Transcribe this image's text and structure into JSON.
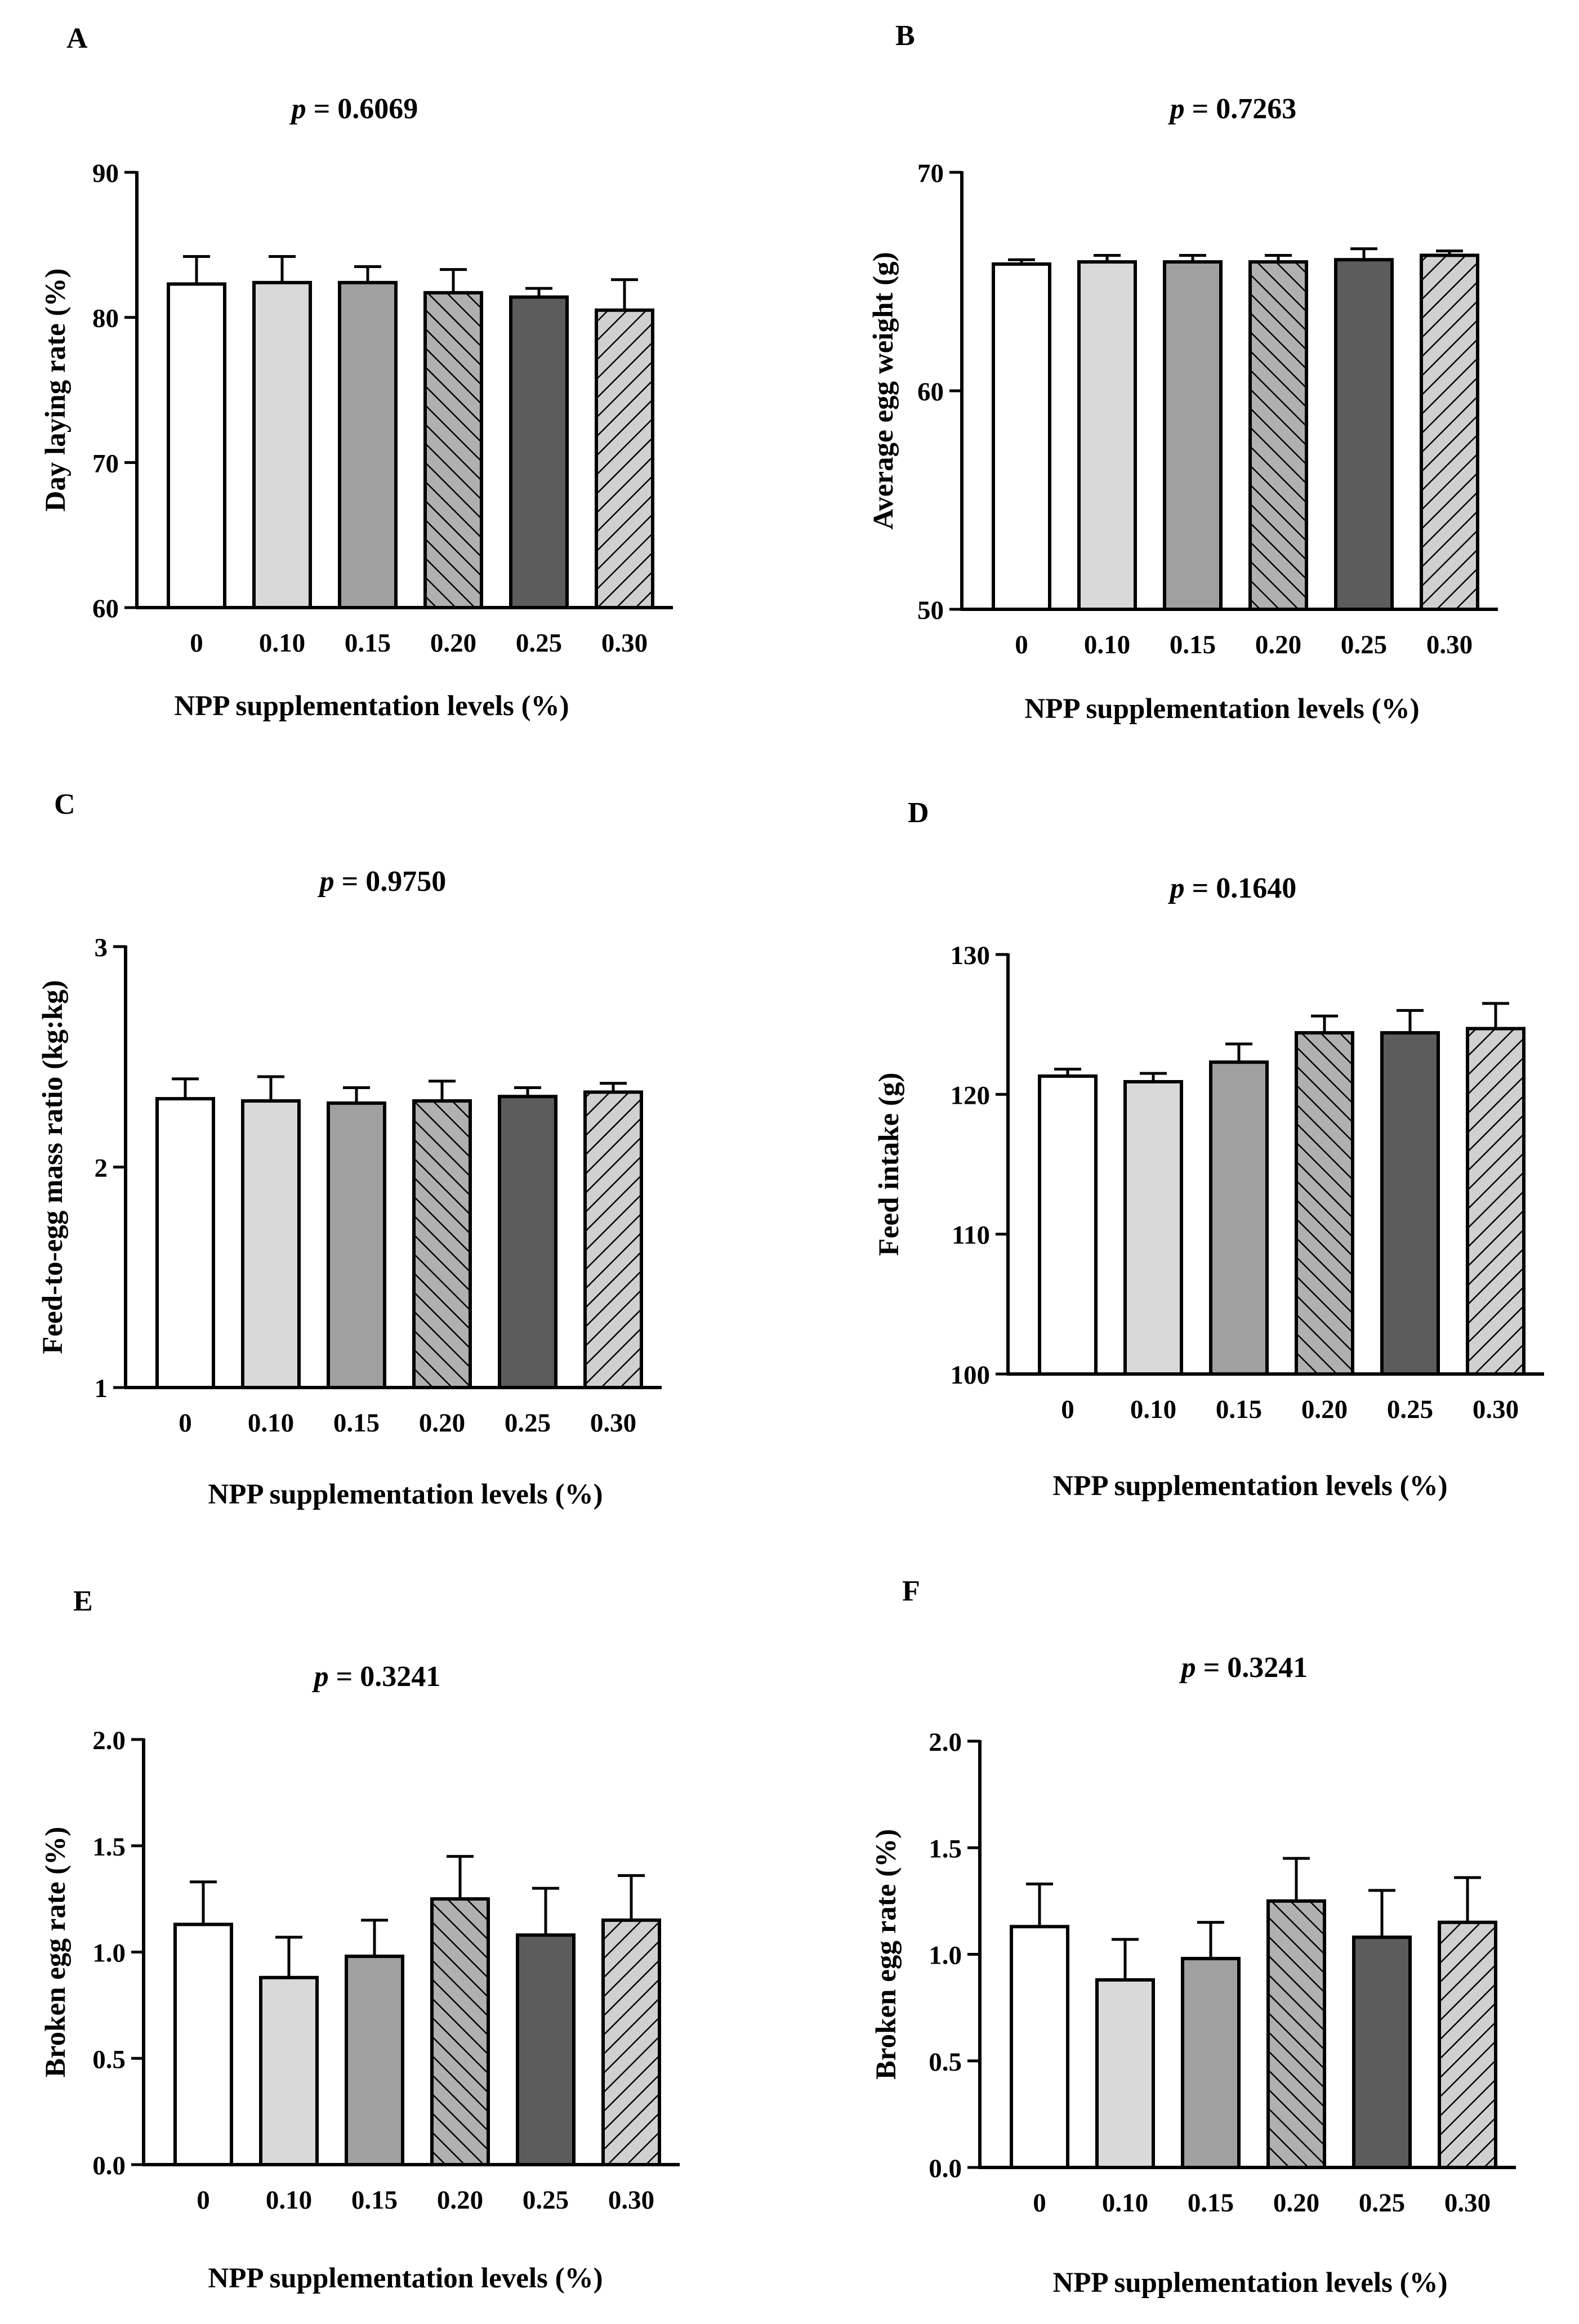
{
  "figure": {
    "colors": {
      "bar_0": "#ffffff",
      "bar_010": "#d9d9d9",
      "bar_015": "#a0a0a0",
      "bar_025": "#5c5c5c",
      "hatch_020_bg": "#b0b0b0",
      "hatch_030_bg": "#d0d0d0",
      "axis": "#000000"
    },
    "panels": [
      {
        "letter": "A",
        "p_label": "p",
        "p_text": " = 0.6069",
        "chart_data": {
          "type": "bar",
          "categories": [
            "0",
            "0.10",
            "0.15",
            "0.20",
            "0.25",
            "0.30"
          ],
          "values": [
            82.3,
            82.4,
            82.4,
            81.7,
            81.4,
            80.5
          ],
          "errors": [
            1.9,
            1.8,
            1.1,
            1.6,
            0.6,
            2.1
          ],
          "xlabel": "NPP supplementation levels  (%)",
          "ylabel": "Day laying rate (%)",
          "ylim": [
            60,
            90
          ],
          "yticks": [
            "60",
            "70",
            "80",
            "90"
          ],
          "ytick_values": [
            60,
            70,
            80,
            90
          ]
        }
      },
      {
        "letter": "B",
        "p_label": "p",
        "p_text": " =  0.7263",
        "chart_data": {
          "type": "bar",
          "categories": [
            "0",
            "0.10",
            "0.15",
            "0.20",
            "0.25",
            "0.30"
          ],
          "values": [
            65.8,
            65.9,
            65.9,
            65.9,
            66.0,
            66.2
          ],
          "errors": [
            0.2,
            0.3,
            0.3,
            0.3,
            0.5,
            0.2
          ],
          "xlabel": "NPP supplementation levels  (%)",
          "ylabel": "Average egg weight (g)",
          "ylim": [
            50,
            70
          ],
          "yticks": [
            "50",
            "60",
            "70"
          ],
          "ytick_values": [
            50,
            60,
            70
          ]
        }
      },
      {
        "letter": "C",
        "p_label": "p",
        "p_text": " =  0.9750",
        "chart_data": {
          "type": "bar",
          "categories": [
            "0",
            "0.10",
            "0.15",
            "0.20",
            "0.25",
            "0.30"
          ],
          "values": [
            2.31,
            2.3,
            2.29,
            2.3,
            2.32,
            2.34
          ],
          "errors": [
            0.09,
            0.11,
            0.07,
            0.09,
            0.04,
            0.04
          ],
          "xlabel": "NPP supplementation levels  (%)",
          "ylabel": "Feed-to-egg mass ratio  (kg:kg)",
          "ylim": [
            1,
            3
          ],
          "yticks": [
            "1",
            "2",
            "3"
          ],
          "ytick_values": [
            1,
            2,
            3
          ]
        }
      },
      {
        "letter": "D",
        "p_label": "p",
        "p_text": " =  0.1640",
        "chart_data": {
          "type": "bar",
          "categories": [
            "0",
            "0.10",
            "0.15",
            "0.20",
            "0.25",
            "0.30"
          ],
          "values": [
            121.3,
            120.9,
            122.3,
            124.4,
            124.4,
            124.7
          ],
          "errors": [
            0.5,
            0.6,
            1.3,
            1.2,
            1.6,
            1.8
          ],
          "xlabel": "NPP supplementation levels  (%)",
          "ylabel": "Feed intake  (g)",
          "ylim": [
            100,
            130
          ],
          "yticks": [
            "100",
            "110",
            "120",
            "130"
          ],
          "ytick_values": [
            100,
            110,
            120,
            130
          ]
        }
      },
      {
        "letter": "E",
        "p_label": "p",
        "p_text": " =  0.3241",
        "chart_data": {
          "type": "bar",
          "categories": [
            "0",
            "0.10",
            "0.15",
            "0.20",
            "0.25",
            "0.30"
          ],
          "values": [
            1.13,
            0.88,
            0.98,
            1.25,
            1.08,
            1.15
          ],
          "errors": [
            0.2,
            0.19,
            0.17,
            0.2,
            0.22,
            0.21
          ],
          "xlabel": "NPP supplementation levels  (%)",
          "ylabel": "Broken egg rate (%)",
          "ylim": [
            0,
            2
          ],
          "yticks": [
            "0.0",
            "0.5",
            "1.0",
            "1.5",
            "2.0"
          ],
          "ytick_values": [
            0,
            0.5,
            1,
            1.5,
            2
          ]
        }
      },
      {
        "letter": "F",
        "p_label": "p",
        "p_text": " =  0.3241",
        "chart_data": {
          "type": "bar",
          "categories": [
            "0",
            "0.10",
            "0.15",
            "0.20",
            "0.25",
            "0.30"
          ],
          "values": [
            1.13,
            0.88,
            0.98,
            1.25,
            1.08,
            1.15
          ],
          "errors": [
            0.2,
            0.19,
            0.17,
            0.2,
            0.22,
            0.21
          ],
          "xlabel": "NPP supplementation levels  (%)",
          "ylabel": "Broken egg rate (%)",
          "ylim": [
            0,
            2
          ],
          "yticks": [
            "0.0",
            "0.5",
            "1.0",
            "1.5",
            "2.0"
          ],
          "ytick_values": [
            0,
            0.5,
            1,
            1.5,
            2
          ]
        }
      }
    ]
  }
}
